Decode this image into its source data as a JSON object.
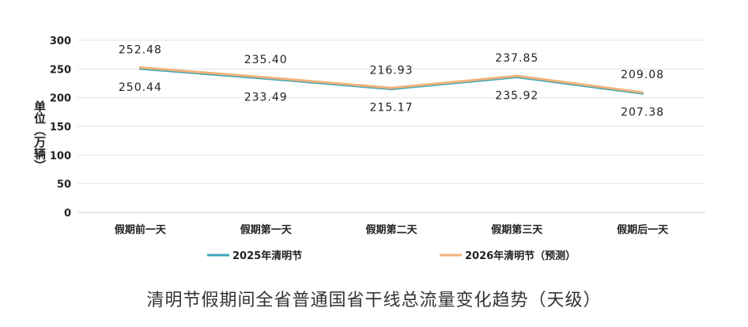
{
  "chart_data": {
    "type": "line",
    "title": "清明节假期间全省普通国省干线总流量变化趋势（天级）",
    "ylabel": "单位（万辆）",
    "xlabel": "",
    "categories": [
      "假期前一天",
      "假期第一天",
      "假期第二天",
      "假期第三天",
      "假期后一天"
    ],
    "ylim": [
      0,
      300
    ],
    "yticks": [
      0,
      50,
      100,
      150,
      200,
      250,
      300
    ],
    "grid": true,
    "legend_position": "bottom",
    "series": [
      {
        "name": "2025年清明节",
        "values": [
          250.44,
          233.49,
          215.17,
          235.92,
          207.38
        ],
        "data_labels": [
          "250.44",
          "233.49",
          "215.17",
          "235.92",
          "207.38"
        ],
        "color": "#3aa6b9"
      },
      {
        "name": "2026年清明节（预测）",
        "values": [
          252.48,
          235.4,
          216.93,
          237.85,
          209.08
        ],
        "data_labels": [
          "252.48",
          "235.40",
          "216.93",
          "237.85",
          "209.08"
        ],
        "color": "#f0b27a"
      }
    ]
  }
}
